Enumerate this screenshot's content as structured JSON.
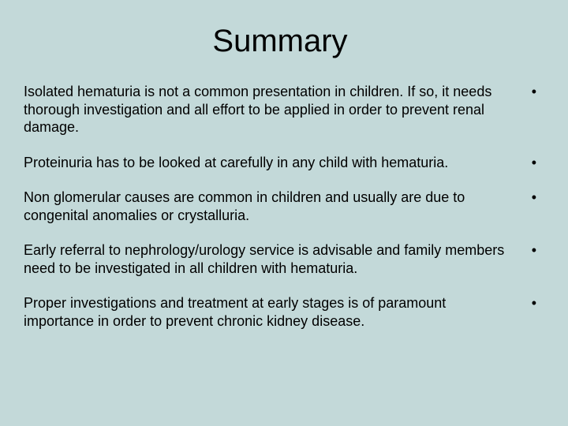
{
  "background_color": "#c3d9d9",
  "text_color": "#000000",
  "title": {
    "text": "Summary",
    "fontsize": 40,
    "weight": "normal",
    "align": "center"
  },
  "body_fontsize": 18,
  "bullet_glyph": "•",
  "points": [
    {
      "text": "Isolated hematuria is not a common presentation in children. If so, it needs thorough investigation and all effort to be applied in order to prevent renal damage."
    },
    {
      "text": "Proteinuria has to be looked at carefully in any child with hematuria."
    },
    {
      "text": "Non glomerular causes are common in children and usually are due to congenital anomalies or crystalluria."
    },
    {
      "text": "Early referral to nephrology/urology service is advisable and family members need to be investigated in all children with hematuria."
    },
    {
      "text": "Proper investigations and treatment at early stages is of paramount importance in order to prevent chronic kidney disease."
    }
  ]
}
